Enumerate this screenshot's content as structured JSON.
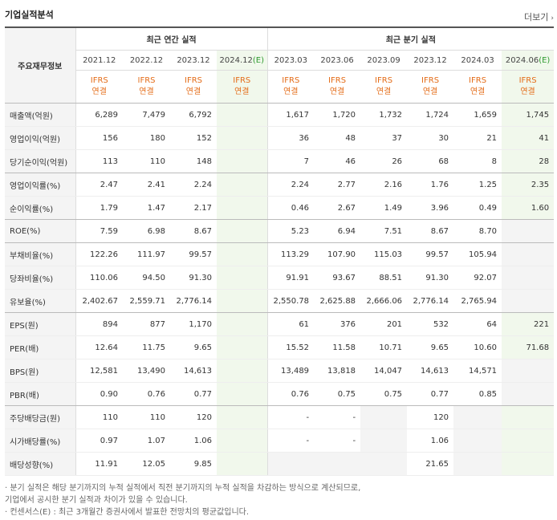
{
  "title": "기업실적분석",
  "more": "더보기",
  "row_header": "주요재무정보",
  "group_annual": "최근 연간 실적",
  "group_quarter": "최근 분기 실적",
  "years": [
    "2021.12",
    "2022.12",
    "2023.12",
    "2024.12"
  ],
  "quarters": [
    "2023.03",
    "2023.06",
    "2023.09",
    "2023.12",
    "2024.03",
    "2024.06"
  ],
  "est_mark": "(E)",
  "ifrs_top": "IFRS",
  "ifrs_bottom": "연결",
  "rows": [
    {
      "label": "매출액(억원)",
      "annual": [
        "6,289",
        "7,479",
        "6,792",
        ""
      ],
      "quarter": [
        "1,617",
        "1,720",
        "1,732",
        "1,724",
        "1,659",
        "1,745"
      ]
    },
    {
      "label": "영업이익(억원)",
      "annual": [
        "156",
        "180",
        "152",
        ""
      ],
      "quarter": [
        "36",
        "48",
        "37",
        "30",
        "21",
        "41"
      ]
    },
    {
      "label": "당기순이익(억원)",
      "annual": [
        "113",
        "110",
        "148",
        ""
      ],
      "quarter": [
        "7",
        "46",
        "26",
        "68",
        "8",
        "28"
      ]
    },
    {
      "label": "영업이익률(%)",
      "annual": [
        "2.47",
        "2.41",
        "2.24",
        ""
      ],
      "quarter": [
        "2.24",
        "2.77",
        "2.16",
        "1.76",
        "1.25",
        "2.35"
      ]
    },
    {
      "label": "순이익률(%)",
      "annual": [
        "1.79",
        "1.47",
        "2.17",
        ""
      ],
      "quarter": [
        "0.46",
        "2.67",
        "1.49",
        "3.96",
        "0.49",
        "1.60"
      ]
    },
    {
      "label": "ROE(%)",
      "annual": [
        "7.59",
        "6.98",
        "8.67",
        ""
      ],
      "quarter": [
        "5.23",
        "6.94",
        "7.51",
        "8.67",
        "8.70",
        ""
      ]
    },
    {
      "label": "부채비율(%)",
      "annual": [
        "122.26",
        "111.97",
        "99.57",
        ""
      ],
      "quarter": [
        "113.29",
        "107.90",
        "115.03",
        "99.57",
        "105.94",
        ""
      ]
    },
    {
      "label": "당좌비율(%)",
      "annual": [
        "110.06",
        "94.50",
        "91.30",
        ""
      ],
      "quarter": [
        "91.91",
        "93.67",
        "88.51",
        "91.30",
        "92.07",
        ""
      ]
    },
    {
      "label": "유보율(%)",
      "annual": [
        "2,402.67",
        "2,559.71",
        "2,776.14",
        ""
      ],
      "quarter": [
        "2,550.78",
        "2,625.88",
        "2,666.06",
        "2,776.14",
        "2,765.94",
        ""
      ]
    },
    {
      "label": "EPS(원)",
      "annual": [
        "894",
        "877",
        "1,170",
        ""
      ],
      "quarter": [
        "61",
        "376",
        "201",
        "532",
        "64",
        "221"
      ]
    },
    {
      "label": "PER(배)",
      "annual": [
        "12.64",
        "11.75",
        "9.65",
        ""
      ],
      "quarter": [
        "15.52",
        "11.58",
        "10.71",
        "9.65",
        "10.60",
        "71.68"
      ]
    },
    {
      "label": "BPS(원)",
      "annual": [
        "12,581",
        "13,490",
        "14,613",
        ""
      ],
      "quarter": [
        "13,489",
        "13,818",
        "14,047",
        "14,613",
        "14,571",
        ""
      ]
    },
    {
      "label": "PBR(배)",
      "annual": [
        "0.90",
        "0.76",
        "0.77",
        ""
      ],
      "quarter": [
        "0.76",
        "0.75",
        "0.75",
        "0.77",
        "0.85",
        ""
      ]
    },
    {
      "label": "주당배당금(원)",
      "annual": [
        "110",
        "110",
        "120",
        ""
      ],
      "quarter": [
        "-",
        "-",
        "",
        "120",
        "",
        ""
      ]
    },
    {
      "label": "시가배당률(%)",
      "annual": [
        "0.97",
        "1.07",
        "1.06",
        ""
      ],
      "quarter": [
        "-",
        "-",
        "",
        "1.06",
        "",
        ""
      ]
    },
    {
      "label": "배당성향(%)",
      "annual": [
        "11.91",
        "12.05",
        "9.85",
        ""
      ],
      "quarter": [
        "",
        "",
        "",
        "21.65",
        "",
        ""
      ]
    }
  ],
  "notes": [
    "· 분기 실적은 해당 분기까지의 누적 실적에서 직전 분기까지의 누적 실적을 차감하는 방식으로 계산되므로,",
    "  기업에서 공시한 분기 실적과 차이가 있을 수 있습니다.",
    "· 컨센서스(E) : 최근 3개월간 증권사에서 발표한 전망치의 평균값입니다."
  ]
}
